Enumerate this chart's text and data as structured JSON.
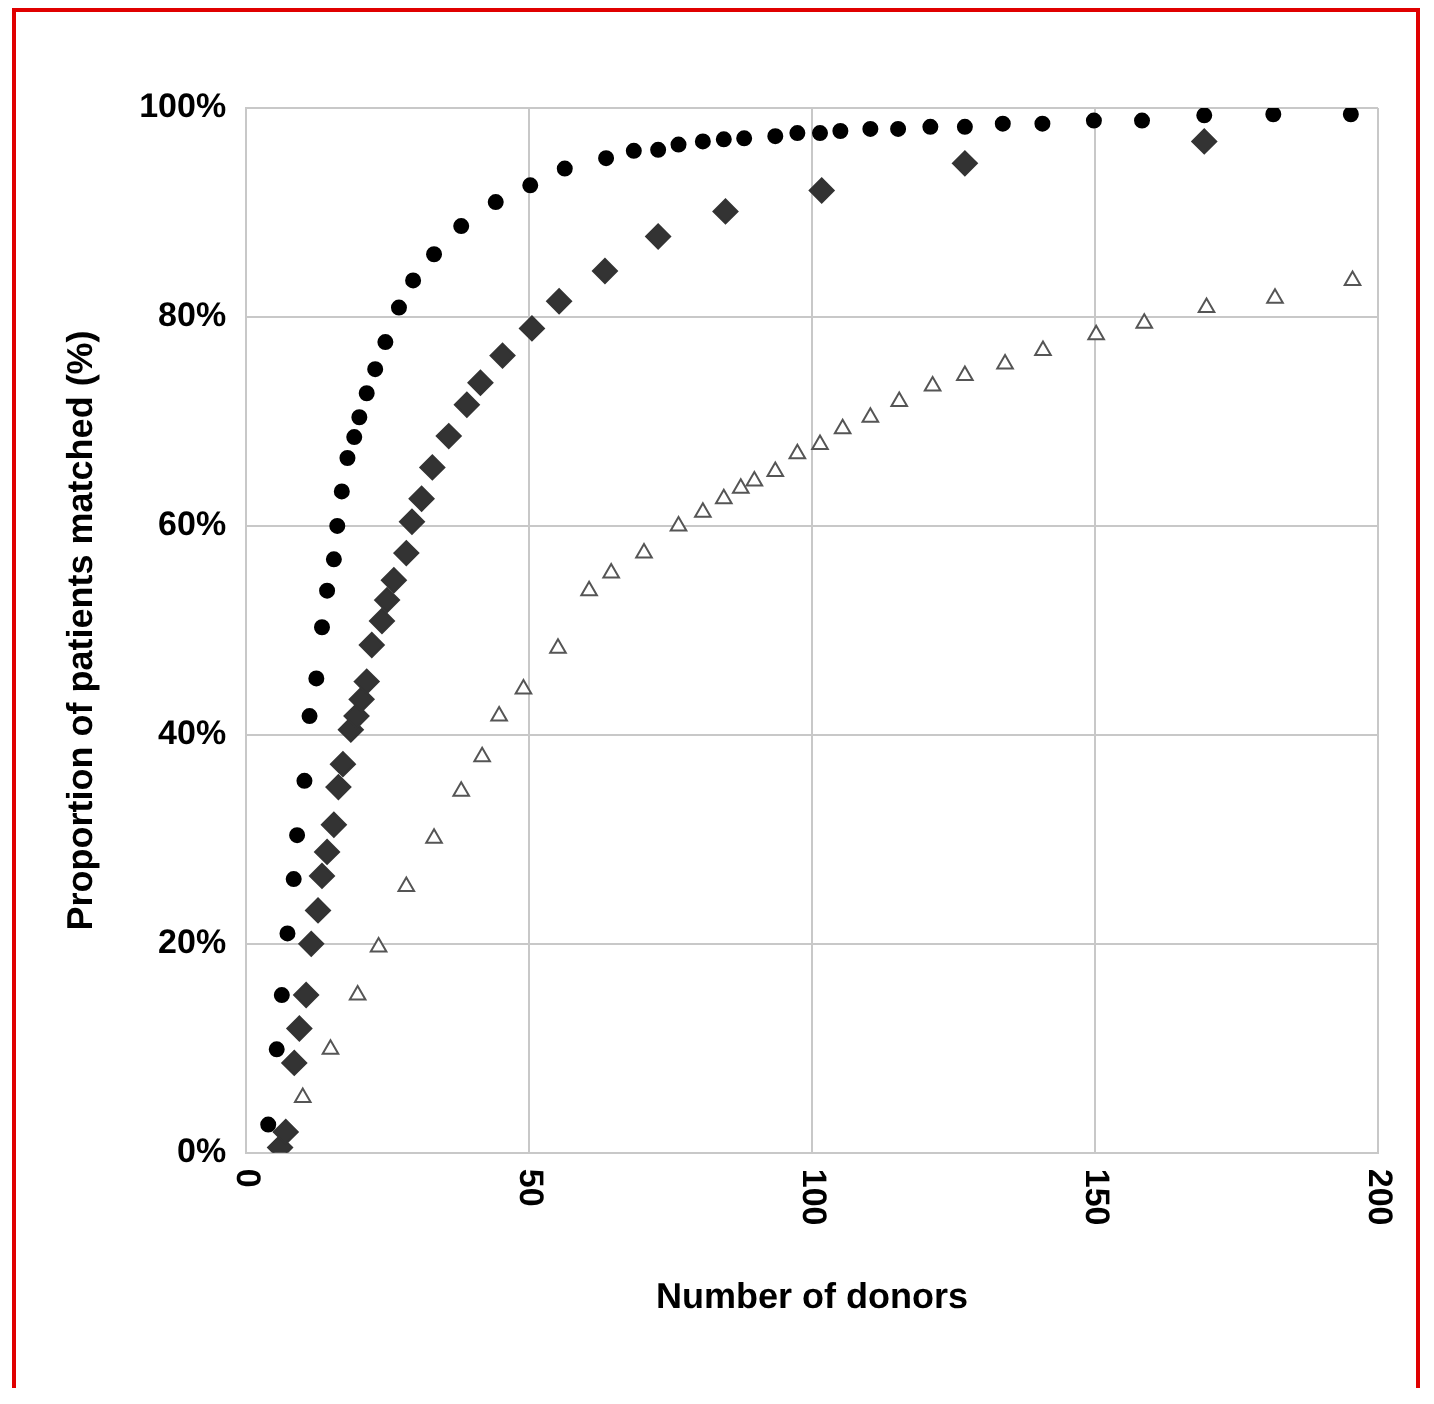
{
  "chart_data": {
    "type": "scatter",
    "xlabel": "Number of donors",
    "ylabel": "Proportion of patients matched (%)",
    "xlim": [
      0,
      200
    ],
    "xticks": [
      0,
      50,
      100,
      150,
      200
    ],
    "ylim": [
      0,
      100
    ],
    "yticks": [
      {
        "value": 0,
        "label": "0%"
      },
      {
        "value": 20,
        "label": "20%"
      },
      {
        "value": 40,
        "label": "40%"
      },
      {
        "value": 60,
        "label": "60%"
      },
      {
        "value": 80,
        "label": "80%"
      },
      {
        "value": 100,
        "label": "100%"
      }
    ],
    "grid": true,
    "series": [
      {
        "color": "#000000",
        "marker": "circle",
        "x": [
          3.9,
          5.4,
          6.3,
          7.3,
          8.4,
          9,
          10.3,
          11.2,
          12.4,
          13.4,
          14.3,
          15.5,
          16.1,
          16.9,
          17.9,
          19.1,
          20,
          21.3,
          22.8,
          24.6,
          27,
          29.5,
          33.2,
          38,
          44.1,
          50.2,
          56.3,
          63.6,
          68.5,
          72.8,
          76.4,
          80.7,
          84.4,
          88,
          93.5,
          97.4,
          101.4,
          105,
          110.3,
          115.2,
          120.9,
          127,
          133.7,
          140.7,
          149.8,
          158.3,
          169.3,
          181.5,
          195.2
        ],
        "values": [
          2.7,
          9.9,
          15.1,
          21,
          26.2,
          30.4,
          35.6,
          41.8,
          45.4,
          50.3,
          53.8,
          56.8,
          60,
          63.3,
          66.5,
          68.5,
          70.4,
          72.7,
          75,
          77.6,
          80.9,
          83.5,
          86,
          88.7,
          91,
          92.6,
          94.2,
          95.2,
          95.9,
          96,
          96.5,
          96.8,
          97,
          97.1,
          97.3,
          97.6,
          97.6,
          97.8,
          98,
          98,
          98.2,
          98.2,
          98.5,
          98.5,
          98.8,
          98.8,
          99.3,
          99.4,
          99.4
        ]
      },
      {
        "color": "#333333",
        "marker": "diamond",
        "x": [
          6,
          7,
          8.5,
          9.4,
          10.6,
          11.5,
          12.7,
          13.4,
          14.3,
          15.5,
          16.3,
          17.1,
          18.5,
          19.5,
          20.4,
          21.3,
          22.2,
          24,
          24.9,
          26.1,
          28.3,
          29.3,
          31,
          32.9,
          35.8,
          39,
          41.4,
          45.3,
          50.5,
          55.3,
          63.4,
          72.8,
          84.7,
          101.7,
          127,
          169.3
        ],
        "values": [
          0.5,
          2,
          8.6,
          11.9,
          15.1,
          20,
          23.2,
          26.5,
          28.8,
          31.4,
          35,
          37.2,
          40.5,
          41.8,
          43.4,
          45.1,
          48.6,
          50.9,
          52.9,
          54.8,
          57.4,
          60.4,
          62.6,
          65.6,
          68.6,
          71.6,
          73.7,
          76.3,
          78.9,
          81.5,
          84.4,
          87.7,
          90.1,
          92.1,
          94.7,
          96.8
        ]
      },
      {
        "color": "#555555",
        "marker": "triangle",
        "x": [
          10,
          14.9,
          19.7,
          23.4,
          28.3,
          33.2,
          38,
          41.7,
          44.7,
          49,
          55.1,
          60.6,
          64.5,
          70.3,
          76.4,
          80.7,
          84.4,
          87.4,
          89.8,
          93.5,
          97.4,
          101.4,
          105.4,
          110.3,
          115.4,
          121.3,
          127,
          134.1,
          140.8,
          150.2,
          158.7,
          169.7,
          181.8,
          195.5
        ],
        "values": [
          5.3,
          9.9,
          15.1,
          19.7,
          25.5,
          30.1,
          34.6,
          37.9,
          41.8,
          44.4,
          48.3,
          53.8,
          55.5,
          57.4,
          60,
          61.3,
          62.6,
          63.6,
          64.3,
          65.2,
          66.9,
          67.8,
          69.3,
          70.4,
          71.9,
          73.4,
          74.4,
          75.5,
          76.8,
          78.3,
          79.4,
          80.9,
          81.8,
          83.5
        ]
      }
    ]
  }
}
